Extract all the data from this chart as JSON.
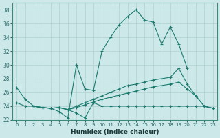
{
  "xlabel": "Humidex (Indice chaleur)",
  "background_color": "#cce8e8",
  "grid_color": "#b0d0d0",
  "line_color": "#1a7a6e",
  "xlim": [
    -0.5,
    23.5
  ],
  "ylim": [
    22,
    39
  ],
  "xticks": [
    0,
    1,
    2,
    3,
    4,
    5,
    6,
    7,
    8,
    9,
    10,
    11,
    12,
    13,
    14,
    15,
    16,
    17,
    18,
    19,
    20,
    21,
    22,
    23
  ],
  "yticks": [
    22,
    24,
    26,
    28,
    30,
    32,
    34,
    36,
    38
  ],
  "series": [
    {
      "x": [
        0,
        1,
        2,
        3,
        4,
        5,
        6,
        7,
        8,
        9,
        10,
        11,
        12,
        13,
        14,
        15,
        16,
        17,
        18,
        19,
        20
      ],
      "y": [
        26.7,
        25.0,
        24.0,
        23.8,
        23.7,
        23.2,
        22.3,
        30.0,
        26.5,
        26.3,
        32.0,
        34.0,
        35.8,
        37.0,
        38.0,
        36.5,
        36.2,
        33.0,
        35.5,
        33.0,
        29.5
      ]
    },
    {
      "x": [
        0,
        1,
        2,
        3,
        4,
        5,
        6,
        7,
        8,
        9,
        10,
        11,
        12,
        13,
        14,
        15,
        16,
        17,
        18,
        19,
        20,
        21,
        22,
        23
      ],
      "y": [
        24.5,
        24.0,
        24.0,
        23.8,
        23.7,
        23.8,
        23.5,
        24.0,
        24.5,
        25.0,
        25.5,
        26.0,
        26.5,
        27.0,
        27.2,
        27.5,
        27.8,
        28.0,
        28.2,
        29.5,
        27.2,
        25.5,
        24.0,
        23.7
      ]
    },
    {
      "x": [
        2,
        3,
        4,
        5,
        6,
        7,
        8,
        9,
        10,
        11,
        12,
        13,
        14,
        15,
        16,
        17,
        18,
        19,
        20,
        21,
        22,
        23
      ],
      "y": [
        24.0,
        23.8,
        23.7,
        23.8,
        23.5,
        23.8,
        24.2,
        24.6,
        25.0,
        25.3,
        25.6,
        25.9,
        26.2,
        26.5,
        26.8,
        27.0,
        27.2,
        27.5,
        26.5,
        25.5,
        24.0,
        23.7
      ]
    },
    {
      "x": [
        2,
        3,
        4,
        5,
        6,
        7,
        8,
        9,
        10,
        11,
        12,
        13,
        14,
        15,
        16,
        17,
        18,
        19,
        20,
        21,
        22,
        23
      ],
      "y": [
        24.0,
        23.8,
        23.7,
        23.8,
        23.5,
        23.0,
        22.3,
        24.5,
        24.0,
        24.0,
        24.0,
        24.0,
        24.0,
        24.0,
        24.0,
        24.0,
        24.0,
        24.0,
        24.0,
        24.0,
        24.0,
        23.7
      ]
    }
  ]
}
